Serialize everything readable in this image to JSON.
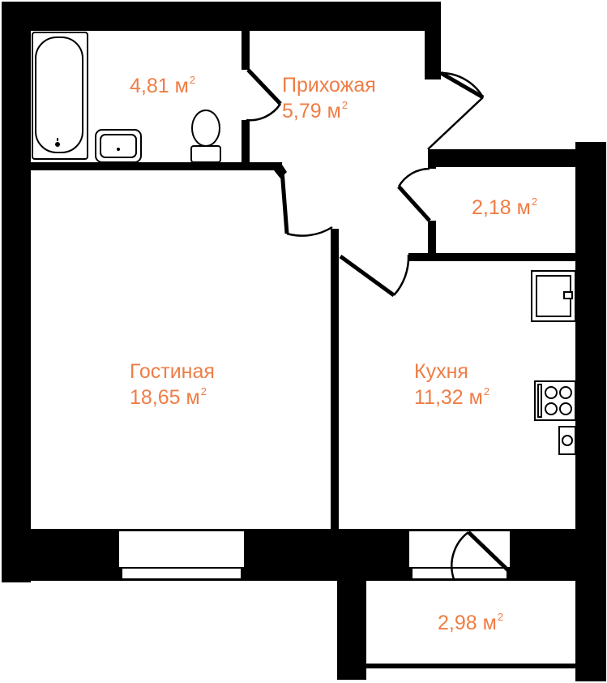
{
  "unit_suffix": "м",
  "unit_power": "2",
  "rooms": [
    {
      "id": "bathroom",
      "name": "",
      "area": "4,81"
    },
    {
      "id": "hallway",
      "name": "Прихожая",
      "area": "5,79"
    },
    {
      "id": "storage",
      "name": "",
      "area": "2,18"
    },
    {
      "id": "living",
      "name": "Гостиная",
      "area": "18,65"
    },
    {
      "id": "kitchen",
      "name": "Кухня",
      "area": "11,32"
    },
    {
      "id": "balcony",
      "name": "",
      "area": "2,98"
    }
  ],
  "colors": {
    "label": "#ef7d45",
    "wall": "#000000",
    "background": "#ffffff"
  },
  "icons": [
    "bathtub-icon",
    "sink-icon",
    "toilet-icon",
    "kitchen-sink-icon",
    "cooktop-icon",
    "oven-icon"
  ]
}
